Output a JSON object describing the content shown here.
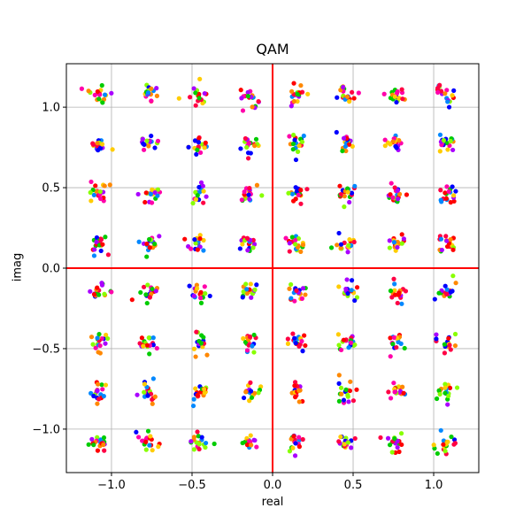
{
  "chart_data": {
    "type": "scatter",
    "title": "QAM",
    "xlabel": "real",
    "ylabel": "imag",
    "xlim": [
      -1.28,
      1.28
    ],
    "ylim": [
      -1.27,
      1.27
    ],
    "x_ticks": [
      -1.0,
      -0.5,
      0.0,
      0.5,
      1.0
    ],
    "x_tick_labels": [
      "−1.0",
      "−0.5",
      "0.0",
      "0.5",
      "1.0"
    ],
    "y_ticks": [
      -1.0,
      -0.5,
      0.0,
      0.5,
      1.0
    ],
    "y_tick_labels": [
      "−1.0",
      "−0.5",
      "0.0",
      "0.5",
      "1.0"
    ],
    "grid": true,
    "zero_lines": {
      "color": "#ff0000"
    },
    "constellation_levels": [
      -1.08,
      -0.77,
      -0.46,
      -0.15,
      0.15,
      0.46,
      0.77,
      1.08
    ],
    "points_per_symbol": 18,
    "noise_std": 0.03,
    "point_colors": [
      "#ff0000",
      "#0000ff",
      "#00cc00",
      "#ff8800",
      "#aa00ff",
      "#ff00aa",
      "#88ff00",
      "#ffcc00",
      "#0088ff",
      "#ff0044"
    ]
  }
}
